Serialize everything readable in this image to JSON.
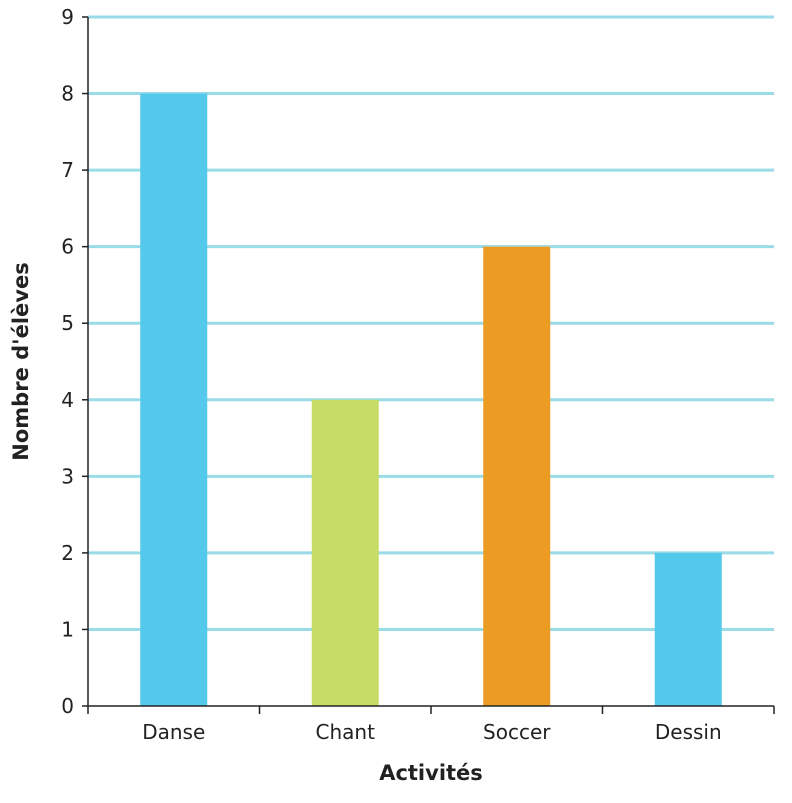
{
  "chart_data": {
    "type": "bar",
    "title": "",
    "xlabel": "Activités",
    "ylabel": "Nombre d'élèves",
    "categories": [
      "Danse",
      "Chant",
      "Soccer",
      "Dessin"
    ],
    "values": [
      8,
      4,
      6,
      2
    ],
    "bar_colors": [
      "#54c9eb",
      "#c6dc67",
      "#ec9b23",
      "#54c9eb"
    ],
    "ylim": [
      0,
      9
    ],
    "yticks": [
      0,
      1,
      2,
      3,
      4,
      5,
      6,
      7,
      8,
      9
    ],
    "grid": true,
    "grid_color": "#9adbe8",
    "legend": "none"
  }
}
